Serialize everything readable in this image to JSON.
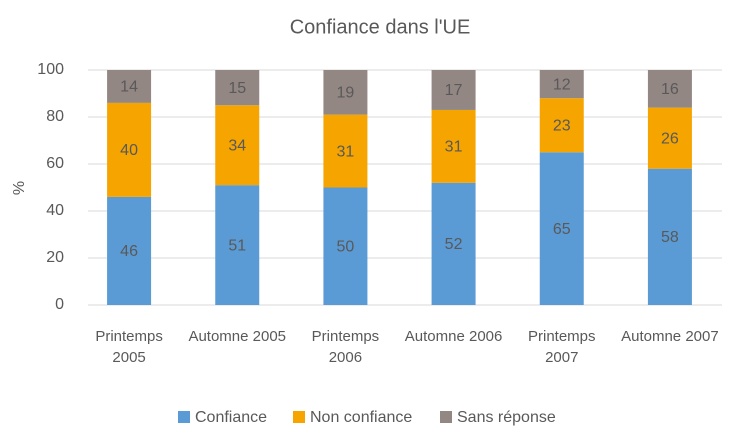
{
  "chart_data": {
    "type": "stacked_bar",
    "title": "Confiance dans l'UE",
    "y_label": "%",
    "categories": [
      "Printemps 2005",
      "Automne 2005",
      "Printemps 2006",
      "Automne 2006",
      "Printemps 2007",
      "Automne 2007"
    ],
    "series": [
      {
        "name": "Confiance",
        "color": "#5b9bd5",
        "values": [
          46,
          51,
          50,
          52,
          65,
          58
        ]
      },
      {
        "name": "Non confiance",
        "color": "#f5a400",
        "values": [
          40,
          34,
          31,
          31,
          23,
          26
        ]
      },
      {
        "name": "Sans réponse",
        "color": "#938784",
        "values": [
          14,
          15,
          19,
          17,
          12,
          16
        ]
      }
    ],
    "ylim": [
      0,
      100
    ],
    "yticks": [
      0,
      20,
      40,
      60,
      80,
      100
    ],
    "grid": true
  }
}
